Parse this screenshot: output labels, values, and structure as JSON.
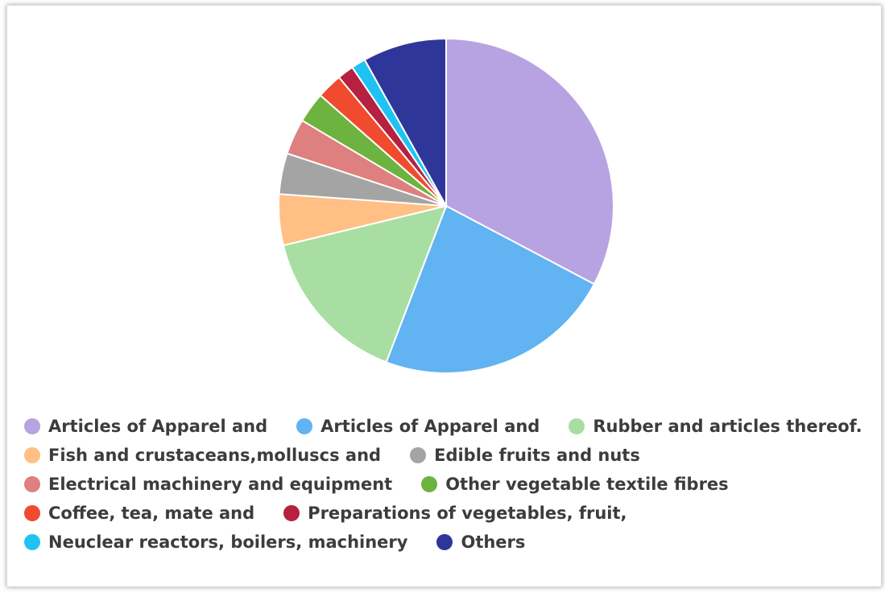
{
  "chart_data": {
    "type": "pie",
    "slices": [
      {
        "label": "Articles of Apparel and",
        "value": 33.2,
        "color": "#b7a3e1"
      },
      {
        "label": "Articles of Apparel and",
        "value": 23.4,
        "color": "#61b3f2"
      },
      {
        "label": "Rubber and articles thereof.",
        "value": 15.6,
        "color": "#a8dea2"
      },
      {
        "label": "Fish and crustaceans,molluscs and",
        "value": 5.0,
        "color": "#ffbf85"
      },
      {
        "label": "Edible fruits and nuts",
        "value": 4.0,
        "color": "#a4a4a4"
      },
      {
        "label": "Electrical machinery and equipment",
        "value": 3.5,
        "color": "#de7f80"
      },
      {
        "label": "Other vegetable textile fibres",
        "value": 3.0,
        "color": "#6db33f"
      },
      {
        "label": "Coffee, tea, mate and",
        "value": 2.5,
        "color": "#f04a2f"
      },
      {
        "label": "Preparations of vegetables, fruit,",
        "value": 1.6,
        "color": "#b5213f"
      },
      {
        "label": "Neuclear reactors, boilers, machinery",
        "value": 1.4,
        "color": "#1fc3f2"
      },
      {
        "label": "Others",
        "value": 8.2,
        "color": "#2f3699"
      }
    ],
    "legend_position": "bottom",
    "title": ""
  },
  "legend_rows": [
    [
      0,
      1,
      2
    ],
    [
      3,
      4
    ],
    [
      5,
      6
    ],
    [
      7,
      8
    ],
    [
      9,
      10
    ]
  ]
}
